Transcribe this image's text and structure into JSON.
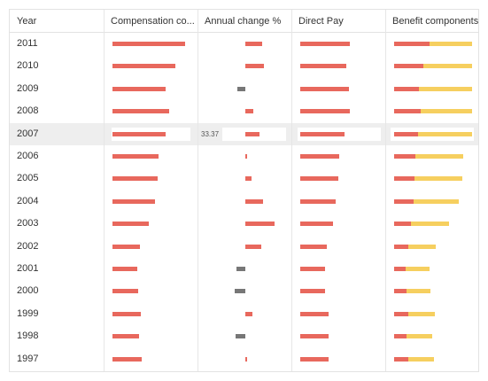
{
  "columns": [
    {
      "key": "year",
      "label": "Year"
    },
    {
      "key": "comp",
      "label": "Compensation co..."
    },
    {
      "key": "change",
      "label": "Annual change %"
    },
    {
      "key": "direct",
      "label": "Direct Pay"
    },
    {
      "key": "benefit",
      "label": "Benefit components"
    }
  ],
  "colors": {
    "positive": "#e8685d",
    "benefit_secondary": "#f6cf5f",
    "negative": "#777777"
  },
  "selected_year": "2007",
  "edit_value": "33.37",
  "rows": [
    {
      "year": "2011",
      "comp": 1.0,
      "change": 0.42,
      "direct": 0.94,
      "benefit_red": 0.45,
      "benefit_yellow": 0.55
    },
    {
      "year": "2010",
      "comp": 0.86,
      "change": 0.45,
      "direct": 0.86,
      "benefit_red": 0.38,
      "benefit_yellow": 0.62
    },
    {
      "year": "2009",
      "comp": 0.73,
      "change": -0.2,
      "direct": 0.92,
      "benefit_red": 0.32,
      "benefit_yellow": 0.68
    },
    {
      "year": "2008",
      "comp": 0.78,
      "change": 0.2,
      "direct": 0.94,
      "benefit_red": 0.34,
      "benefit_yellow": 0.66
    },
    {
      "year": "2007",
      "comp": 0.73,
      "change": 0.35,
      "direct": 0.83,
      "benefit_red": 0.31,
      "benefit_yellow": 0.69
    },
    {
      "year": "2006",
      "comp": 0.64,
      "change": 0.05,
      "direct": 0.73,
      "benefit_red": 0.27,
      "benefit_yellow": 0.62
    },
    {
      "year": "2005",
      "comp": 0.62,
      "change": 0.15,
      "direct": 0.71,
      "benefit_red": 0.26,
      "benefit_yellow": 0.62
    },
    {
      "year": "2004",
      "comp": 0.58,
      "change": 0.44,
      "direct": 0.67,
      "benefit_red": 0.25,
      "benefit_yellow": 0.58
    },
    {
      "year": "2003",
      "comp": 0.5,
      "change": 0.72,
      "direct": 0.62,
      "benefit_red": 0.22,
      "benefit_yellow": 0.48
    },
    {
      "year": "2002",
      "comp": 0.38,
      "change": 0.4,
      "direct": 0.5,
      "benefit_red": 0.18,
      "benefit_yellow": 0.35
    },
    {
      "year": "2001",
      "comp": 0.34,
      "change": -0.22,
      "direct": 0.46,
      "benefit_red": 0.15,
      "benefit_yellow": 0.3
    },
    {
      "year": "2000",
      "comp": 0.35,
      "change": -0.27,
      "direct": 0.47,
      "benefit_red": 0.16,
      "benefit_yellow": 0.31
    },
    {
      "year": "1999",
      "comp": 0.39,
      "change": 0.17,
      "direct": 0.53,
      "benefit_red": 0.18,
      "benefit_yellow": 0.34
    },
    {
      "year": "1998",
      "comp": 0.37,
      "change": -0.24,
      "direct": 0.53,
      "benefit_red": 0.16,
      "benefit_yellow": 0.33
    },
    {
      "year": "1997",
      "comp": 0.4,
      "change": 0.03,
      "direct": 0.53,
      "benefit_red": 0.18,
      "benefit_yellow": 0.33
    }
  ]
}
